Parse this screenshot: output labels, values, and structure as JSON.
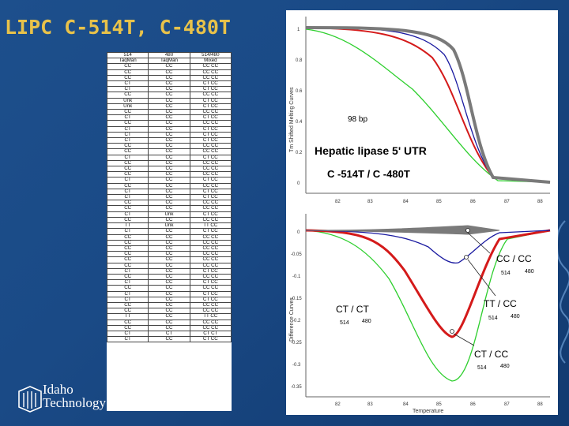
{
  "slide": {
    "title": "LIPC C-514T, C-480T"
  },
  "logo": {
    "line1": "Idaho",
    "line2": "Technology Inc."
  },
  "table": {
    "header1": [
      "514",
      "480",
      "514/480"
    ],
    "header2": [
      "TaqMan",
      "TaqMan",
      "Mixed"
    ],
    "rows": [
      [
        "CC",
        "CC",
        "CC CC"
      ],
      [
        "CC",
        "CC",
        "CC CC"
      ],
      [
        "CC",
        "CC",
        "CC CC"
      ],
      [
        "CT",
        "CC",
        "CT CC"
      ],
      [
        "CT",
        "CC",
        "CT CC"
      ],
      [
        "CC",
        "CC",
        "CC CC"
      ],
      [
        "Unk",
        "CC",
        "CT CC"
      ],
      [
        "Unk",
        "CC",
        "CT CC"
      ],
      [
        "CC",
        "CC",
        "CC CC"
      ],
      [
        "CT",
        "CC",
        "CT CC"
      ],
      [
        "CC",
        "CC",
        "CC CC"
      ],
      [
        "CT",
        "CC",
        "CT CC"
      ],
      [
        "CT",
        "CC",
        "CT CC"
      ],
      [
        "CT",
        "CC",
        "CT CC"
      ],
      [
        "CC",
        "CC",
        "CC CC"
      ],
      [
        "CC",
        "CC",
        "CC CC"
      ],
      [
        "CT",
        "CC",
        "CT CC"
      ],
      [
        "CC",
        "CC",
        "CC CC"
      ],
      [
        "CC",
        "CC",
        "CC CC"
      ],
      [
        "CC",
        "CC",
        "CC CC"
      ],
      [
        "CT",
        "CC",
        "CT CC"
      ],
      [
        "CC",
        "CC",
        "CC CC"
      ],
      [
        "CT",
        "CC",
        "CT CC"
      ],
      [
        "CT",
        "CC",
        "CT CC"
      ],
      [
        "CC",
        "CC",
        "CC CC"
      ],
      [
        "CC",
        "CC",
        "CC CC"
      ],
      [
        "CT",
        "Unk",
        "CT CC"
      ],
      [
        "CC",
        "CC",
        "CC CC"
      ],
      [
        "TT",
        "Unk",
        "TT CC"
      ],
      [
        "CT",
        "CC",
        "CT CC"
      ],
      [
        "CC",
        "CC",
        "CC CC"
      ],
      [
        "CC",
        "CC",
        "CC CC"
      ],
      [
        "CC",
        "CC",
        "CC CC"
      ],
      [
        "CC",
        "CC",
        "CC CC"
      ],
      [
        "CC",
        "CC",
        "CC CC"
      ],
      [
        "CC",
        "CC",
        "CC CC"
      ],
      [
        "CT",
        "CC",
        "CT CC"
      ],
      [
        "CC",
        "CC",
        "CC CC"
      ],
      [
        "CT",
        "CC",
        "CT CC"
      ],
      [
        "CC",
        "CC",
        "CC CC"
      ],
      [
        "CT",
        "CC",
        "CT CC"
      ],
      [
        "CT",
        "CC",
        "CT CC"
      ],
      [
        "CC",
        "CC",
        "CC CC"
      ],
      [
        "CC",
        "CC",
        "CC CC"
      ],
      [
        "TT",
        "CC",
        "TT CC"
      ],
      [
        "CC",
        "CC",
        "CC CC"
      ],
      [
        "CC",
        "CC",
        "CC CC"
      ],
      [
        "CT",
        "CT",
        "CT CT"
      ],
      [
        "CT",
        "CC",
        "CT CC"
      ]
    ]
  },
  "figure": {
    "top_panel": {
      "ylabel": "Tm Shifted Melting Curves",
      "yticks": [
        "1",
        "0.8",
        "0.6",
        "0.4",
        "0.2",
        "0"
      ],
      "xticks": [
        "82",
        "83",
        "84",
        "85",
        "86",
        "87",
        "88"
      ],
      "amplicon_label": "98 bp",
      "gene_title": "Hepatic lipase 5' UTR",
      "snp_title": "C -514T / C -480T"
    },
    "bottom_panel": {
      "ylabel": "Difference Curves",
      "yticks": [
        "0",
        "-0.05",
        "-0.1",
        "-0.15",
        "-0.2",
        "-0.25",
        "-0.3",
        "-0.35"
      ],
      "xticks": [
        "82",
        "83",
        "84",
        "85",
        "86",
        "87",
        "88"
      ],
      "xlabel": "Temperature",
      "labels": [
        {
          "genotype": "CC / CC",
          "pos1": "514",
          "pos2": "480"
        },
        {
          "genotype": "TT / CC",
          "pos1": "514",
          "pos2": "480"
        },
        {
          "genotype": "CT / CT",
          "pos1": "514",
          "pos2": "480"
        },
        {
          "genotype": "CT / CC",
          "pos1": "514",
          "pos2": "480"
        }
      ]
    },
    "colors": {
      "cc_cc": "#7a7a7a",
      "ct_cc": "#d41a1a",
      "tt_cc": "#1a1aa0",
      "ct_ct": "#2ecf2e"
    }
  }
}
